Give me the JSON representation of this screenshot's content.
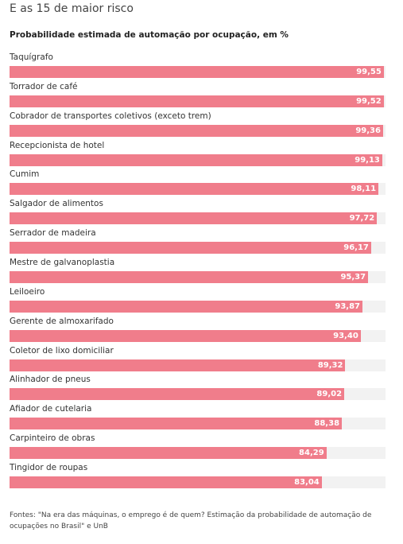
{
  "chart_data": {
    "type": "bar",
    "orientation": "horizontal",
    "title": "E as 15 de maior risco",
    "subtitle": "Probabilidade estimada de automação por ocupação, em %",
    "categories": [
      "Taquígrafo",
      "Torrador de café",
      "Cobrador de transportes coletivos (exceto trem)",
      "Recepcionista de hotel",
      "Cumim",
      "Salgador de alimentos",
      "Serrador de madeira",
      "Mestre de galvanoplastia",
      "Leiloeiro",
      "Gerente de almoxarifado",
      "Coletor de lixo domiciliar",
      "Alinhador de pneus",
      "Afiador de cutelaria",
      "Carpinteiro de obras",
      "Tingidor de roupas"
    ],
    "values": [
      99.55,
      99.52,
      99.36,
      99.13,
      98.11,
      97.72,
      96.17,
      95.37,
      93.87,
      93.4,
      89.32,
      89.02,
      88.38,
      84.29,
      83.04
    ],
    "value_labels": [
      "99,55",
      "99,52",
      "99,36",
      "99,13",
      "98,11",
      "97,72",
      "96,17",
      "95,37",
      "93,87",
      "93,40",
      "89,32",
      "89,02",
      "88,38",
      "84,29",
      "83,04"
    ],
    "color": "#f07d8b",
    "xlim": [
      0,
      100
    ],
    "source": "Fontes: \"Na era das máquinas, o emprego é de quem? Estimação da probabilidade de automação de ocupações no Brasil\" e UnB"
  }
}
